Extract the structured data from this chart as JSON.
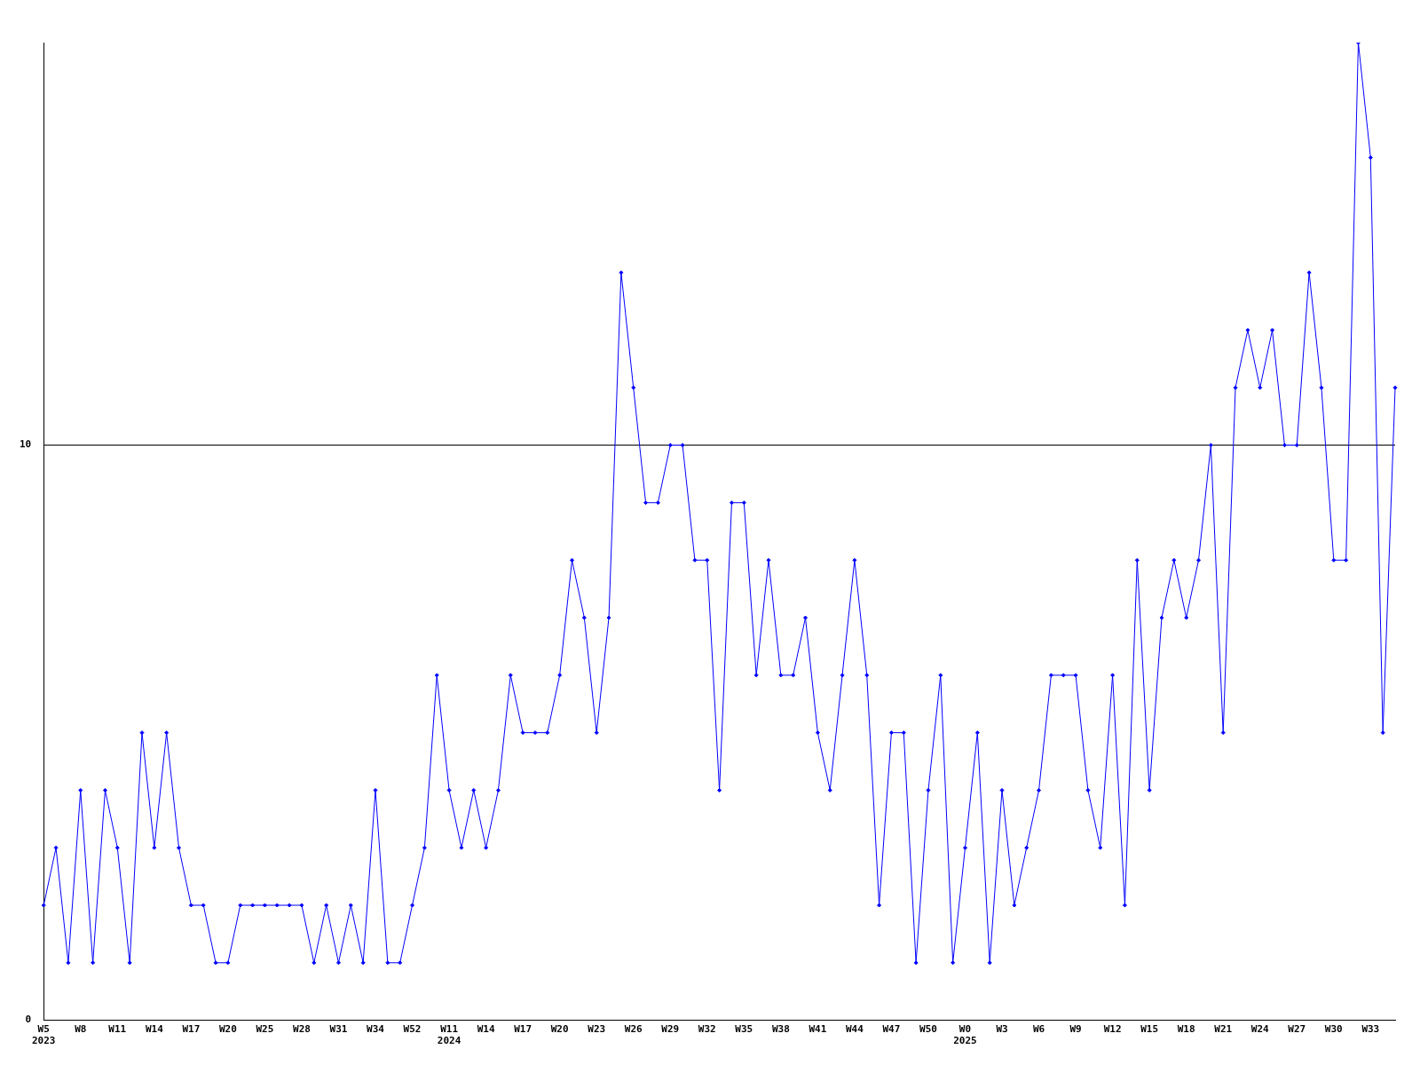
{
  "chart_data": {
    "type": "line",
    "categories": [
      "W5\n2023",
      null,
      null,
      "W8",
      null,
      null,
      "W11",
      null,
      null,
      "W14",
      null,
      null,
      "W17",
      null,
      null,
      "W20",
      null,
      null,
      "W25",
      null,
      null,
      "W28",
      null,
      null,
      "W31",
      null,
      null,
      "W34",
      null,
      null,
      "W52",
      null,
      null,
      "W11\n2024",
      null,
      null,
      "W14",
      null,
      null,
      "W17",
      null,
      null,
      "W20",
      null,
      null,
      "W23",
      null,
      null,
      "W26",
      null,
      null,
      "W29",
      null,
      null,
      "W32",
      null,
      null,
      "W35",
      null,
      null,
      "W38",
      null,
      null,
      "W41",
      null,
      null,
      "W44",
      null,
      null,
      "W47",
      null,
      null,
      "W50",
      null,
      null,
      "W0\n2025",
      null,
      null,
      "W3",
      null,
      null,
      "W6",
      null,
      null,
      "W9",
      null,
      null,
      "W12",
      null,
      null,
      "W15",
      null,
      null,
      "W18",
      null,
      null,
      "W21",
      null,
      null,
      "W24",
      null,
      null,
      "W27",
      null,
      null,
      "W30",
      null,
      null,
      "W33",
      null,
      null
    ],
    "series": [
      {
        "color": "#0000ff",
        "values": [
          2,
          3,
          1,
          4,
          1,
          4,
          3,
          1,
          5,
          3,
          5,
          3,
          2,
          2,
          1,
          1,
          2,
          2,
          2,
          2,
          2,
          2,
          1,
          2,
          1,
          2,
          1,
          4,
          1,
          1,
          2,
          3,
          6,
          4,
          3,
          4,
          3,
          4,
          6,
          5,
          5,
          5,
          6,
          8,
          7,
          5,
          7,
          13,
          11,
          9,
          9,
          10,
          10,
          8,
          8,
          4,
          9,
          9,
          6,
          8,
          6,
          6,
          7,
          5,
          4,
          6,
          8,
          6,
          2,
          5,
          5,
          1,
          4,
          6,
          1,
          3,
          5,
          1,
          4,
          2,
          3,
          4,
          6,
          6,
          6,
          4,
          3,
          6,
          2,
          8,
          4,
          7,
          8,
          7,
          8,
          10,
          5,
          11,
          12,
          11,
          12,
          10,
          10,
          13,
          11,
          8,
          8,
          17,
          15,
          5,
          11
        ]
      }
    ],
    "ylim": [
      0,
      17
    ],
    "yticks": [
      0,
      10
    ],
    "grid": "y",
    "marker": "diamond",
    "line_style": "solid",
    "legend": false
  }
}
